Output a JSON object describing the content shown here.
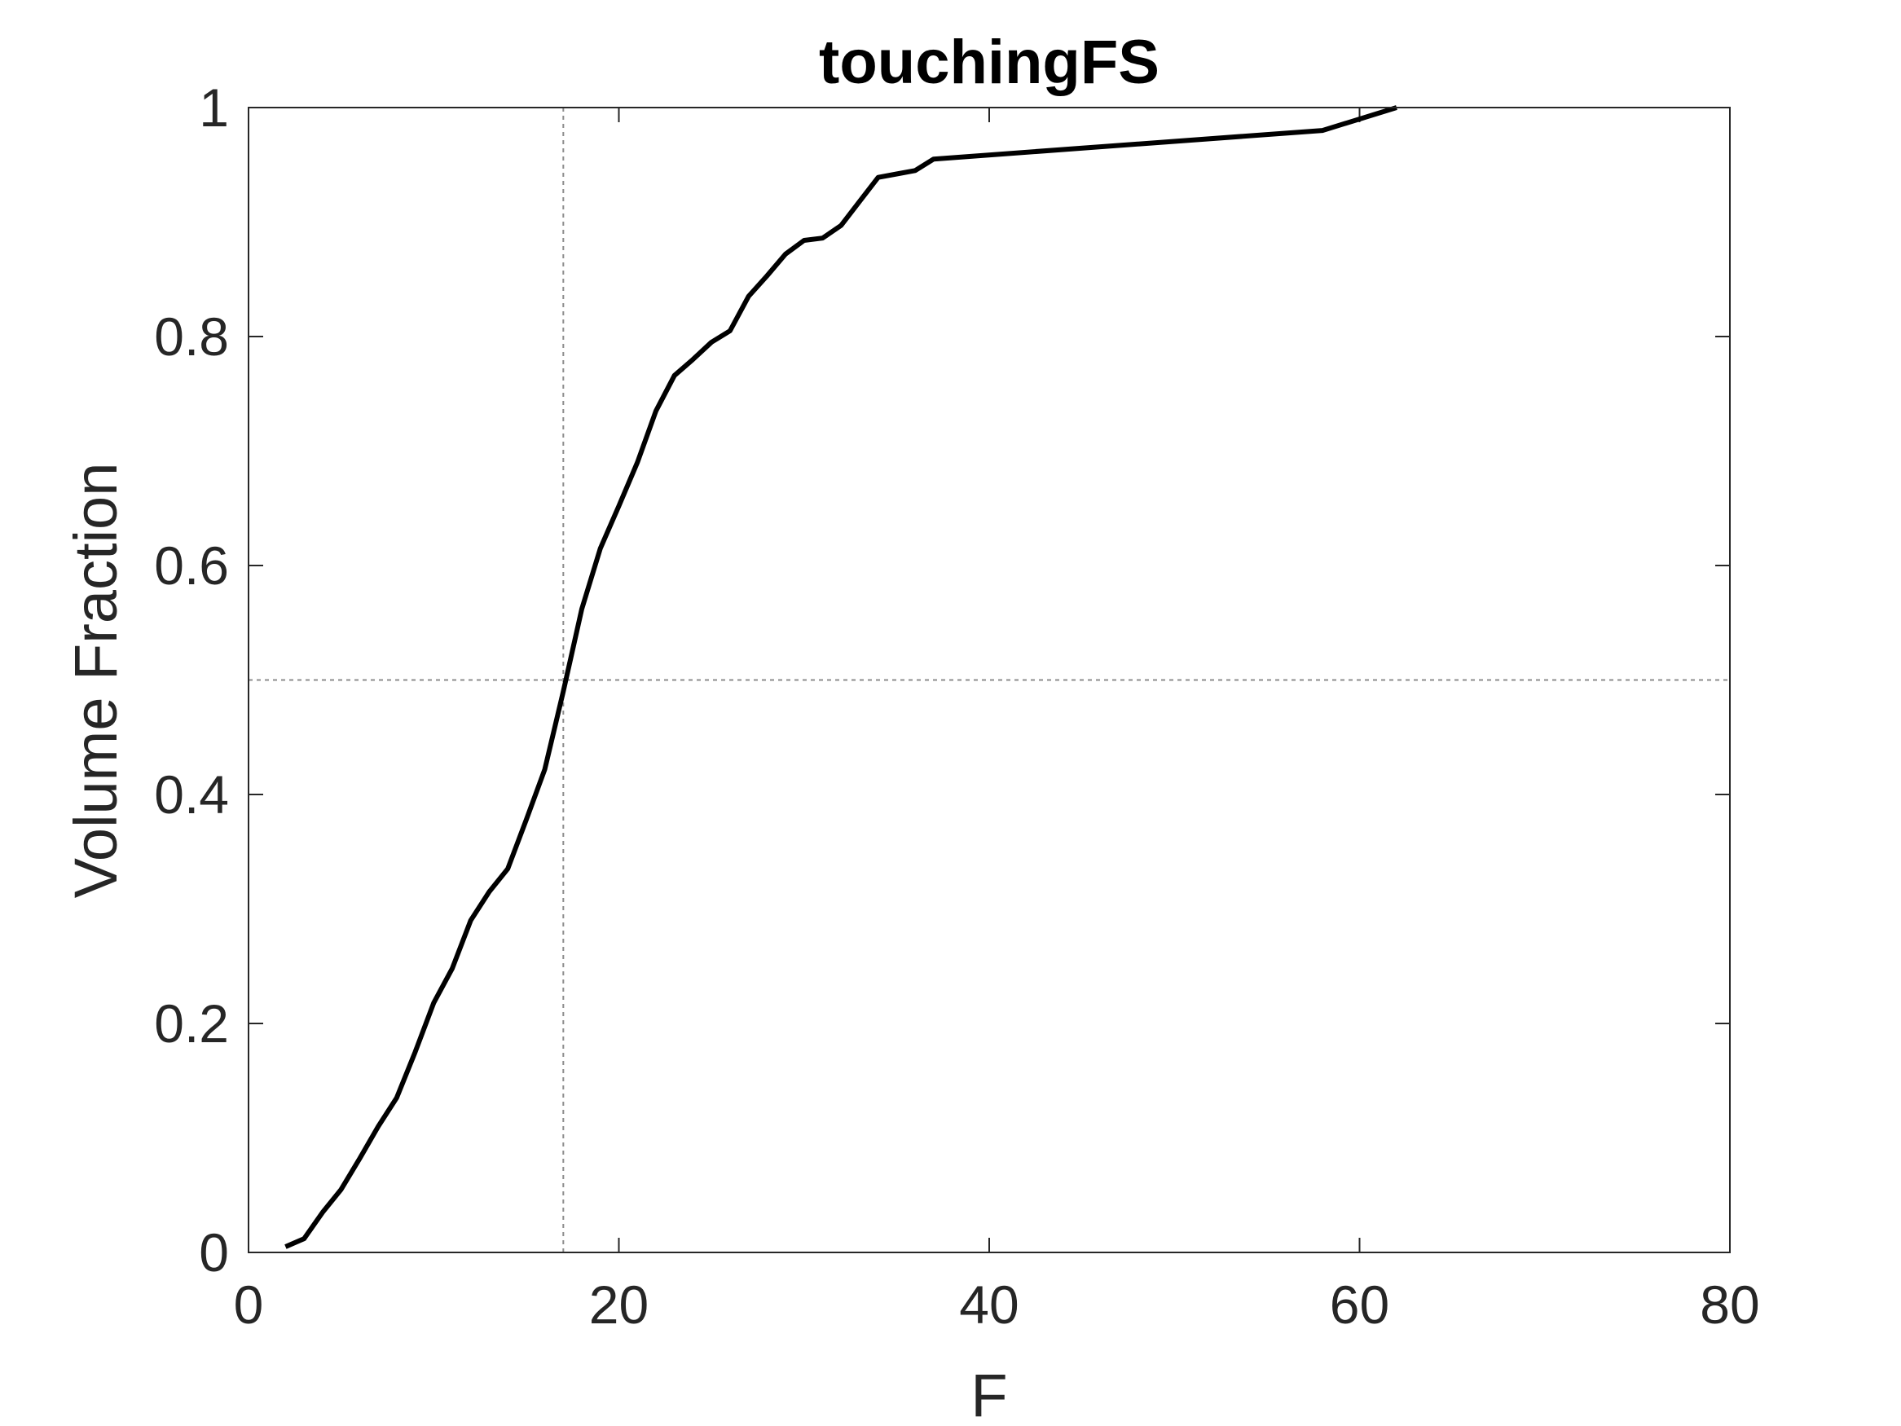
{
  "chart_data": {
    "type": "line",
    "title": "touchingFS",
    "xlabel": "F",
    "ylabel": "Volume Fraction",
    "xlim": [
      0,
      80
    ],
    "ylim": [
      0,
      1
    ],
    "xticks": [
      "0",
      "20",
      "40",
      "60",
      "80"
    ],
    "yticks": [
      "0",
      "0.2",
      "0.4",
      "0.6",
      "0.8",
      "1"
    ],
    "grid": false,
    "box": true,
    "reference_lines": {
      "vertical_x": 17,
      "horizontal_y": 0.5,
      "style": "dotted",
      "color": "#8c8c8c"
    },
    "series": [
      {
        "color": "#000000",
        "x": [
          2,
          3,
          4,
          5,
          6,
          7,
          8,
          9,
          10,
          11,
          12,
          13,
          14,
          15,
          16,
          17,
          18,
          19,
          20,
          21,
          22,
          23,
          24,
          25,
          26,
          27,
          28,
          29,
          30,
          31,
          32,
          33,
          34,
          35,
          36,
          37,
          58,
          62
        ],
        "y": [
          0.005,
          0.012,
          0.035,
          0.055,
          0.082,
          0.11,
          0.135,
          0.175,
          0.218,
          0.248,
          0.29,
          0.315,
          0.335,
          0.378,
          0.422,
          0.49,
          0.562,
          0.615,
          0.652,
          0.69,
          0.735,
          0.766,
          0.78,
          0.795,
          0.805,
          0.835,
          0.853,
          0.872,
          0.884,
          0.886,
          0.897,
          0.918,
          0.939,
          0.942,
          0.945,
          0.955,
          0.98,
          1.0
        ]
      }
    ]
  }
}
